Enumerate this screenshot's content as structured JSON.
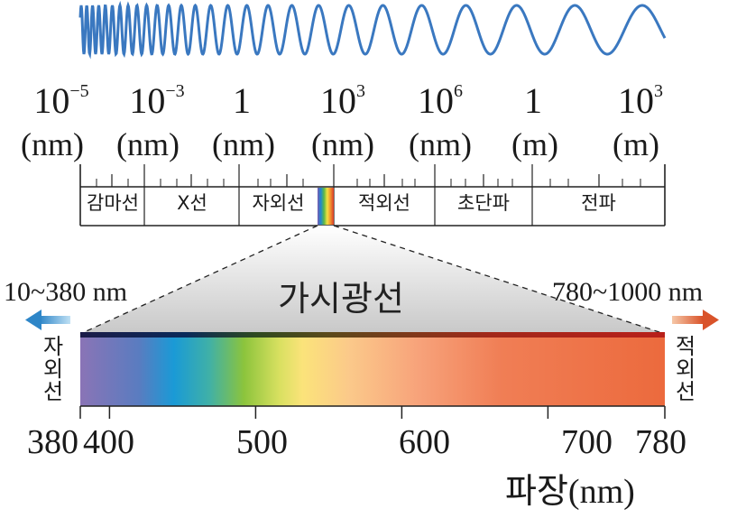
{
  "exponents": [
    {
      "base": "10",
      "exp": "−5"
    },
    {
      "base": "10",
      "exp": "−3"
    },
    {
      "base": "1",
      "exp": ""
    },
    {
      "base": "10",
      "exp": "3"
    },
    {
      "base": "10",
      "exp": "6"
    },
    {
      "base": "1",
      "exp": ""
    },
    {
      "base": "10",
      "exp": "3"
    }
  ],
  "units": [
    "(nm)",
    "(nm)",
    "(nm)",
    "(nm)",
    "(nm)",
    "(m)",
    "(m)"
  ],
  "bands": [
    "감마선",
    "X선",
    "자외선",
    "적외선",
    "초단파",
    "전파"
  ],
  "visible_title": "가시광선",
  "left_range": "10~380 nm",
  "right_range": "780~1000 nm",
  "left_vertical": "자외선",
  "right_vertical": "적외선",
  "ticks": [
    "380",
    "400",
    "500",
    "600",
    "700",
    "780"
  ],
  "axis_title": "파장(nm)",
  "colors": {
    "wave": "#3a78c0",
    "uv_arrow": "#2e86c8",
    "ir_arrow": "#d9532a",
    "spectrum_end": "#ec6a3d"
  }
}
